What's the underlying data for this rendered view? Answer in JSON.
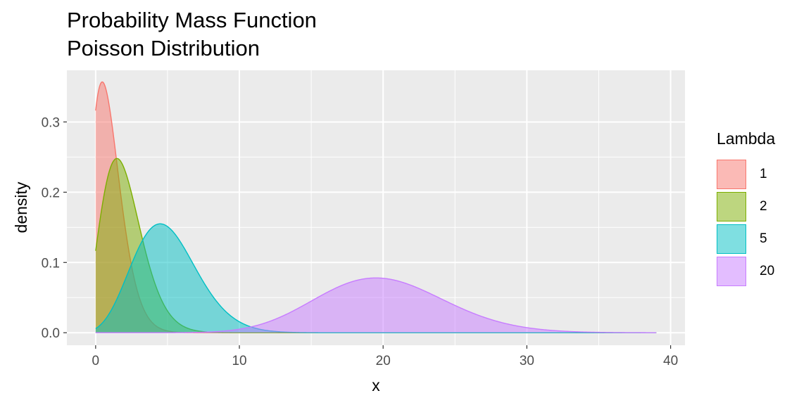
{
  "title": "Probability Mass Function",
  "subtitle": "Poisson Distribution",
  "chart_data": {
    "type": "area",
    "title": "Probability Mass Function",
    "subtitle": "Poisson Distribution",
    "xlabel": "x",
    "ylabel": "density",
    "xlim": [
      -2,
      41
    ],
    "ylim": [
      -0.0178,
      0.3735
    ],
    "x_ticks": [
      0,
      10,
      20,
      30,
      40
    ],
    "y_ticks": [
      0.0,
      0.1,
      0.2,
      0.3
    ],
    "x_tick_labels": [
      "0",
      "10",
      "20",
      "30",
      "40"
    ],
    "y_tick_labels": [
      "0.0",
      "0.1",
      "0.2",
      "0.3"
    ],
    "grid": true,
    "legend_title": "Lambda",
    "legend_position": "right",
    "x_range": [
      0,
      39
    ],
    "series": [
      {
        "name": "1",
        "lambda": 1,
        "color": "#F8766D",
        "peak_x": 0.6,
        "peak_y": 0.357
      },
      {
        "name": "2",
        "lambda": 2,
        "color": "#7CAE00",
        "peak_x": 1.6,
        "peak_y": 0.248
      },
      {
        "name": "5",
        "lambda": 5,
        "color": "#00BFC4",
        "peak_x": 4.7,
        "peak_y": 0.155
      },
      {
        "name": "20",
        "lambda": 20,
        "color": "#C77CFF",
        "peak_x": 19.7,
        "peak_y": 0.078
      }
    ]
  }
}
